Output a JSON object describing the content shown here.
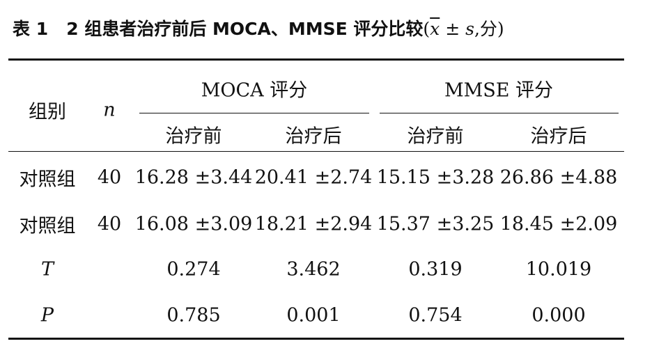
{
  "title": {
    "label": "表 1",
    "text": "2 组患者治疗前后 MOCA、MMSE 评分比较",
    "note": [
      "(",
      "x",
      " ± ",
      "s",
      ",分)"
    ]
  },
  "table": {
    "header": {
      "group": "组别",
      "n": "n",
      "spans": [
        "MOCA 评分",
        "MMSE 评分"
      ],
      "sub": [
        "治疗前",
        "治疗后",
        "治疗前",
        "治疗后"
      ]
    },
    "rows": [
      [
        "对照组",
        "40",
        "16.28 ±3.44",
        "20.41 ±2.74",
        "15.15 ±3.28",
        "26.86 ±4.88"
      ],
      [
        "对照组",
        "40",
        "16.08 ±3.09",
        "18.21 ±2.94",
        "15.37 ±3.25",
        "18.45 ±2.09"
      ],
      [
        "T",
        "0.274",
        "3.462",
        "0.319",
        "10.019"
      ],
      [
        "P",
        "0.785",
        "0.001",
        "0.754",
        "0.000"
      ]
    ]
  }
}
